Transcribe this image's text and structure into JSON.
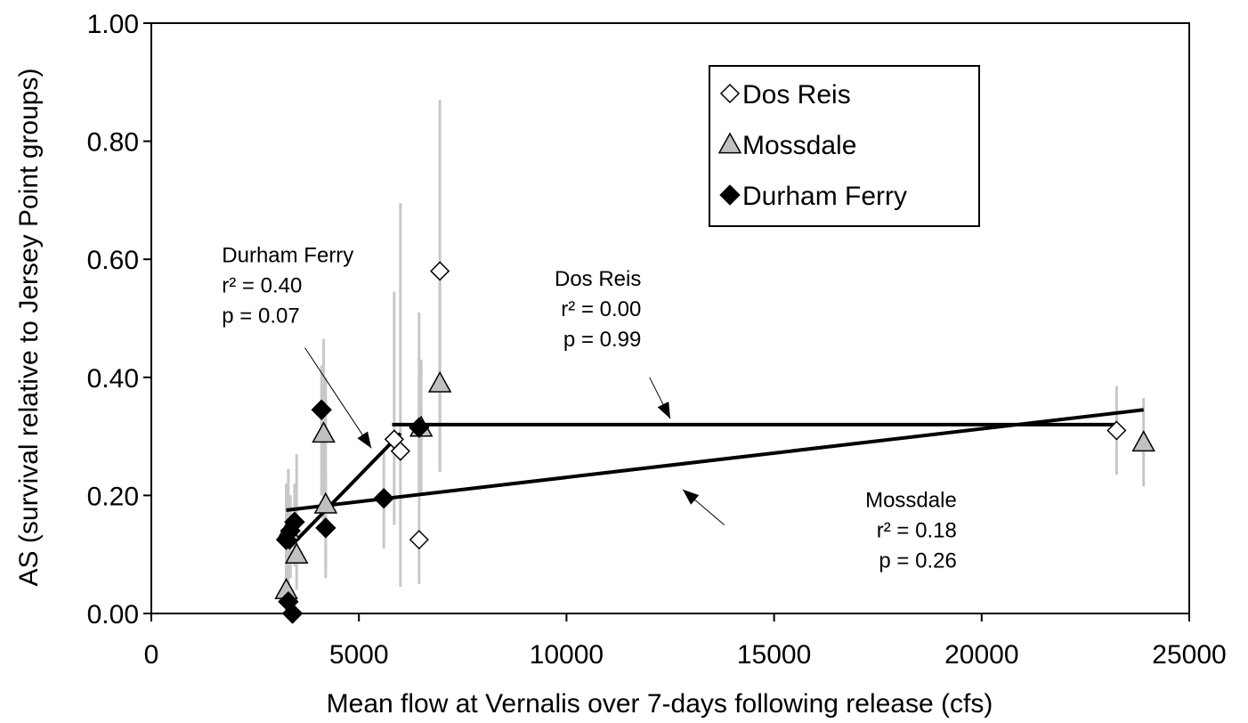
{
  "chart_data": {
    "type": "scatter",
    "xlabel": "Mean flow at Vernalis over 7-days following release (cfs)",
    "ylabel": "AS (survival relative to Jersey Point groups)",
    "xlim": [
      0,
      25000
    ],
    "ylim": [
      0,
      1.0
    ],
    "x_ticks": [
      "0",
      "5000",
      "10000",
      "15000",
      "20000",
      "25000"
    ],
    "y_ticks": [
      "0.00",
      "0.20",
      "0.40",
      "0.60",
      "0.80",
      "1.00"
    ],
    "legend": {
      "placement": "top-right",
      "entries": [
        "Dos Reis",
        "Mossdale",
        "Durham Ferry"
      ]
    },
    "series": [
      {
        "name": "Dos Reis",
        "marker": "open-diamond",
        "color": "#ffffff",
        "points": [
          {
            "x": 5850,
            "y": 0.295,
            "lo": 0.15,
            "hi": 0.545
          },
          {
            "x": 6000,
            "y": 0.275,
            "lo": 0.045,
            "hi": 0.695
          },
          {
            "x": 6450,
            "y": 0.125,
            "lo": 0.05,
            "hi": 0.51
          },
          {
            "x": 6950,
            "y": 0.58,
            "lo": 0.24,
            "hi": 0.87
          },
          {
            "x": 23250,
            "y": 0.31,
            "lo": 0.235,
            "hi": 0.385
          }
        ],
        "fit": {
          "x0": 5800,
          "y0": 0.32,
          "x1": 23300,
          "y1": 0.32
        }
      },
      {
        "name": "Mossdale",
        "marker": "gray-triangle",
        "color": "#c0c0c0",
        "points": [
          {
            "x": 3250,
            "y": 0.04,
            "lo": 0.0,
            "hi": 0.1
          },
          {
            "x": 3300,
            "y": 0.14,
            "lo": 0.05,
            "hi": 0.245
          },
          {
            "x": 3500,
            "y": 0.1,
            "lo": 0.04,
            "hi": 0.27
          },
          {
            "x": 4150,
            "y": 0.305,
            "lo": 0.15,
            "hi": 0.465
          },
          {
            "x": 4200,
            "y": 0.185,
            "lo": 0.07,
            "hi": 0.4
          },
          {
            "x": 6500,
            "y": 0.315,
            "lo": 0.2,
            "hi": 0.43
          },
          {
            "x": 6950,
            "y": 0.39,
            "lo": 0.24,
            "hi": 0.6
          },
          {
            "x": 23900,
            "y": 0.29,
            "lo": 0.215,
            "hi": 0.365
          }
        ],
        "fit": {
          "x0": 3250,
          "y0": 0.175,
          "x1": 23900,
          "y1": 0.345
        }
      },
      {
        "name": "Durham Ferry",
        "marker": "filled-diamond",
        "color": "#000000",
        "points": [
          {
            "x": 3250,
            "y": 0.125,
            "lo": 0.05,
            "hi": 0.22
          },
          {
            "x": 3300,
            "y": 0.02,
            "lo": 0.0,
            "hi": 0.07
          },
          {
            "x": 3350,
            "y": 0.14,
            "lo": 0.06,
            "hi": 0.2
          },
          {
            "x": 3400,
            "y": 0.0,
            "lo": 0.0,
            "hi": 0.04
          },
          {
            "x": 3450,
            "y": 0.155,
            "lo": 0.08,
            "hi": 0.22
          },
          {
            "x": 4100,
            "y": 0.345,
            "lo": 0.2,
            "hi": 0.42
          },
          {
            "x": 4200,
            "y": 0.145,
            "lo": 0.06,
            "hi": 0.23
          },
          {
            "x": 5600,
            "y": 0.195,
            "lo": 0.11,
            "hi": 0.28
          },
          {
            "x": 6450,
            "y": 0.315,
            "lo": 0.22,
            "hi": 0.4
          }
        ],
        "fit": {
          "x0": 3300,
          "y0": 0.11,
          "x1": 6000,
          "y1": 0.305
        }
      }
    ],
    "annotations": [
      {
        "lines": [
          "Durham Ferry",
          "r² = 0.40",
          "p = 0.07"
        ],
        "anchor_data": [
          1700,
          0.595
        ],
        "align": "start",
        "arrow_from": [
          3700,
          0.45
        ],
        "arrow_to": [
          5300,
          0.28
        ]
      },
      {
        "lines": [
          "Dos Reis",
          "r² = 0.00",
          "p = 0.99"
        ],
        "anchor_data": [
          11800,
          0.555
        ],
        "align": "end",
        "arrow_from": [
          12000,
          0.4
        ],
        "arrow_to": [
          12500,
          0.33
        ]
      },
      {
        "lines": [
          "Mossdale",
          "r² = 0.18",
          "p = 0.26"
        ],
        "anchor_data": [
          19400,
          0.18
        ],
        "align": "end",
        "arrow_from": [
          13800,
          0.15
        ],
        "arrow_to": [
          12800,
          0.21
        ]
      }
    ]
  }
}
